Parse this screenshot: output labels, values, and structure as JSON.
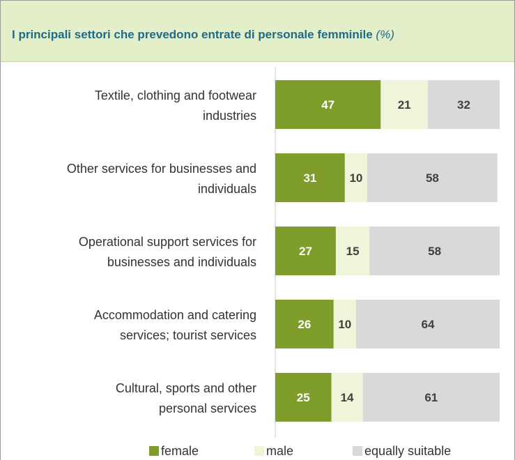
{
  "header": {
    "title": "I principali settori che prevedono entrate di personale femminile",
    "unit": "(%)"
  },
  "colors": {
    "female": "#7f9d2a",
    "male": "#eef5d8",
    "equally_suitable": "#d9d9d9",
    "title_text": "#1f6a87",
    "title_background": "#e3efc9"
  },
  "chart_data": {
    "type": "bar",
    "orientation": "horizontal",
    "stacked": true,
    "title": "I principali settori che prevedono entrate di personale femminile (%)",
    "categories": [
      [
        "Textile, clothing and footwear",
        "industries"
      ],
      [
        "Other services for businesses and",
        "individuals"
      ],
      [
        "Operational support services for",
        "businesses and individuals"
      ],
      [
        "Accommodation and catering",
        "services; tourist services"
      ],
      [
        "Cultural, sports and other",
        "personal services"
      ]
    ],
    "series": [
      {
        "name": "female",
        "values": [
          47,
          31,
          27,
          26,
          25
        ]
      },
      {
        "name": "male",
        "values": [
          21,
          10,
          15,
          10,
          14
        ]
      },
      {
        "name": "equally suitable",
        "values": [
          32,
          58,
          58,
          64,
          61
        ]
      }
    ],
    "xlim": [
      0,
      100
    ],
    "data_labels": true,
    "grid": false,
    "legend_position": "bottom"
  }
}
